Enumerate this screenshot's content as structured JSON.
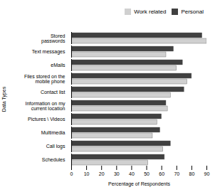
{
  "chart_data": {
    "type": "bar",
    "orientation": "horizontal",
    "categories": [
      "Stored\npasswords",
      "Text messages",
      "eMails",
      "Files stored on the\nmobile phone",
      "Contact list",
      "Information on my\ncurrent location",
      "Pictures \\ Videos",
      "Multimedia",
      "Call logs",
      "Schedules"
    ],
    "series": [
      {
        "name": "Work related",
        "color": "#d0d0d0",
        "values": [
          90,
          63,
          70,
          77,
          66,
          64,
          57,
          54,
          61,
          51
        ]
      },
      {
        "name": "Personal",
        "color": "#404040",
        "values": [
          87,
          68,
          74,
          80,
          75,
          63,
          60,
          59,
          66,
          62
        ]
      }
    ],
    "xlabel": "Percentage of Respondents",
    "ylabel": "Data Types",
    "xlim": [
      0,
      90
    ],
    "xticks": [
      0,
      10,
      20,
      30,
      40,
      50,
      60,
      70,
      80,
      90
    ],
    "legend": "upper right",
    "grid": false
  }
}
